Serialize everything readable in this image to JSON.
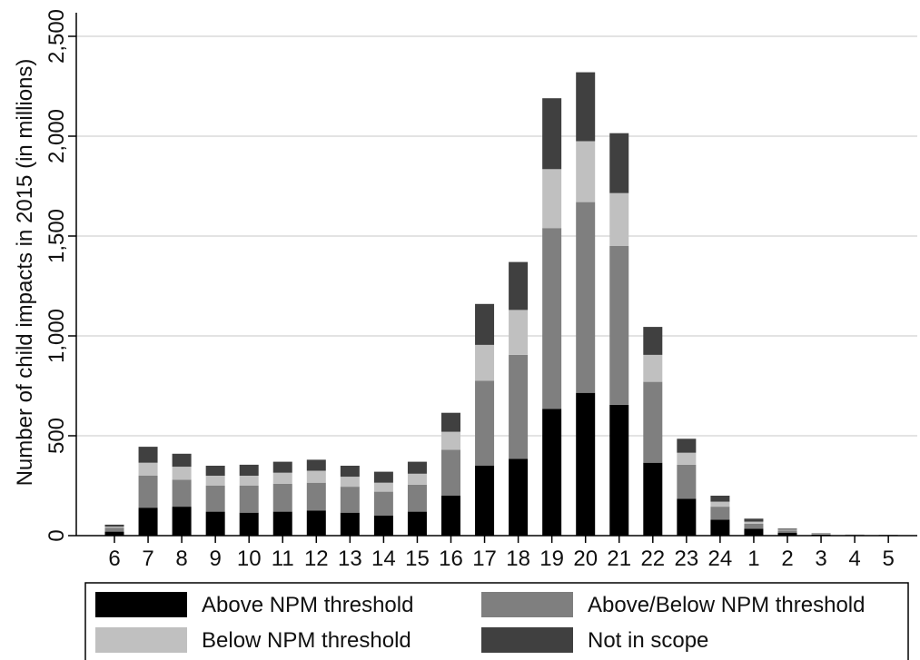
{
  "chart_data": {
    "type": "bar",
    "stacked": true,
    "title": "",
    "xlabel": "",
    "ylabel": "Number of child impacts in 2015 (in millions)",
    "ylim": [
      0,
      2500
    ],
    "yticks": [
      0,
      500,
      1000,
      1500,
      2000,
      2500
    ],
    "ytick_labels": [
      "0",
      "500",
      "1,000",
      "1,500",
      "2,000",
      "2,500"
    ],
    "grid": true,
    "legend_position": "bottom",
    "categories": [
      "6",
      "7",
      "8",
      "9",
      "10",
      "11",
      "12",
      "13",
      "14",
      "15",
      "16",
      "17",
      "18",
      "19",
      "20",
      "21",
      "22",
      "23",
      "24",
      "1",
      "2",
      "3",
      "4",
      "5"
    ],
    "series": [
      {
        "name": "Above NPM threshold",
        "color": "#000000",
        "values": [
          20,
          140,
          145,
          120,
          115,
          120,
          125,
          115,
          100,
          120,
          200,
          350,
          385,
          635,
          715,
          655,
          365,
          185,
          80,
          35,
          15,
          5,
          2,
          1
        ]
      },
      {
        "name": "Above/Below NPM threshold",
        "color": "#7f7f7f",
        "values": [
          20,
          160,
          135,
          130,
          135,
          140,
          140,
          130,
          120,
          135,
          230,
          425,
          520,
          905,
          955,
          795,
          405,
          170,
          65,
          25,
          10,
          3,
          1,
          1
        ]
      },
      {
        "name": "Below NPM threshold",
        "color": "#c0c0c0",
        "values": [
          5,
          65,
          65,
          50,
          50,
          55,
          60,
          50,
          45,
          55,
          90,
          180,
          225,
          295,
          305,
          265,
          135,
          60,
          25,
          10,
          5,
          2,
          1,
          1
        ]
      },
      {
        "name": "Not in scope",
        "color": "#404040",
        "values": [
          10,
          80,
          65,
          50,
          55,
          55,
          55,
          55,
          55,
          60,
          95,
          205,
          240,
          355,
          345,
          300,
          140,
          70,
          30,
          15,
          5,
          2,
          1,
          1
        ]
      }
    ]
  }
}
